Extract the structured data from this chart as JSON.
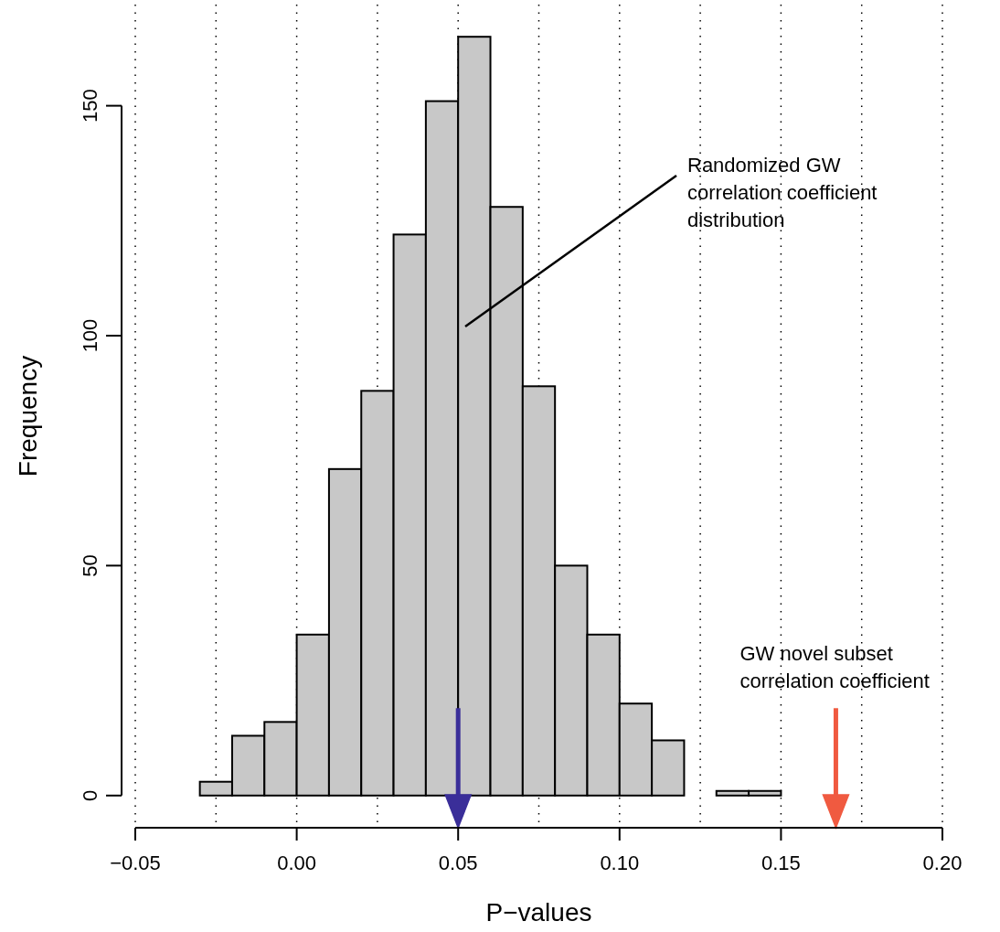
{
  "chart_data": {
    "type": "histogram",
    "xlabel": "P−values",
    "ylabel": "Frequency",
    "bins": [
      -0.03,
      -0.02,
      -0.01,
      0.0,
      0.01,
      0.02,
      0.03,
      0.04,
      0.05,
      0.06,
      0.07,
      0.08,
      0.09,
      0.1,
      0.11,
      0.12,
      0.13,
      0.14,
      0.15
    ],
    "values": [
      3,
      13,
      16,
      35,
      71,
      88,
      122,
      151,
      165,
      128,
      89,
      50,
      35,
      20,
      12,
      0,
      1,
      1
    ],
    "color": "#c8c8c8",
    "xlim": [
      -0.05,
      0.2
    ],
    "xticks": [
      {
        "value": -0.05,
        "label": "−0.05"
      },
      {
        "value": -0.025,
        "label": null
      },
      {
        "value": 0,
        "label": "0.00"
      },
      {
        "value": 0.025,
        "label": null
      },
      {
        "value": 0.05,
        "label": "0.05"
      },
      {
        "value": 0.075,
        "label": null
      },
      {
        "value": 0.1,
        "label": "0.10"
      },
      {
        "value": 0.125,
        "label": null
      },
      {
        "value": 0.15,
        "label": "0.15"
      },
      {
        "value": 0.175,
        "label": null
      },
      {
        "value": 0.2,
        "label": "0.20"
      }
    ],
    "ylim": [
      -7,
      172
    ],
    "yticks": [
      0,
      50,
      100,
      150
    ],
    "grid": "x",
    "ref_lines": [
      {
        "axis": "x",
        "value": 0.05,
        "color": "#3a2e99"
      },
      {
        "axis": "x",
        "value": 0.167,
        "color": "#f05a40",
        "label": "GW novel subset\ncorrelation coefficient"
      }
    ],
    "annotations": [
      "Randomized GW\ncorrelation coefficient\ndistribution"
    ]
  }
}
